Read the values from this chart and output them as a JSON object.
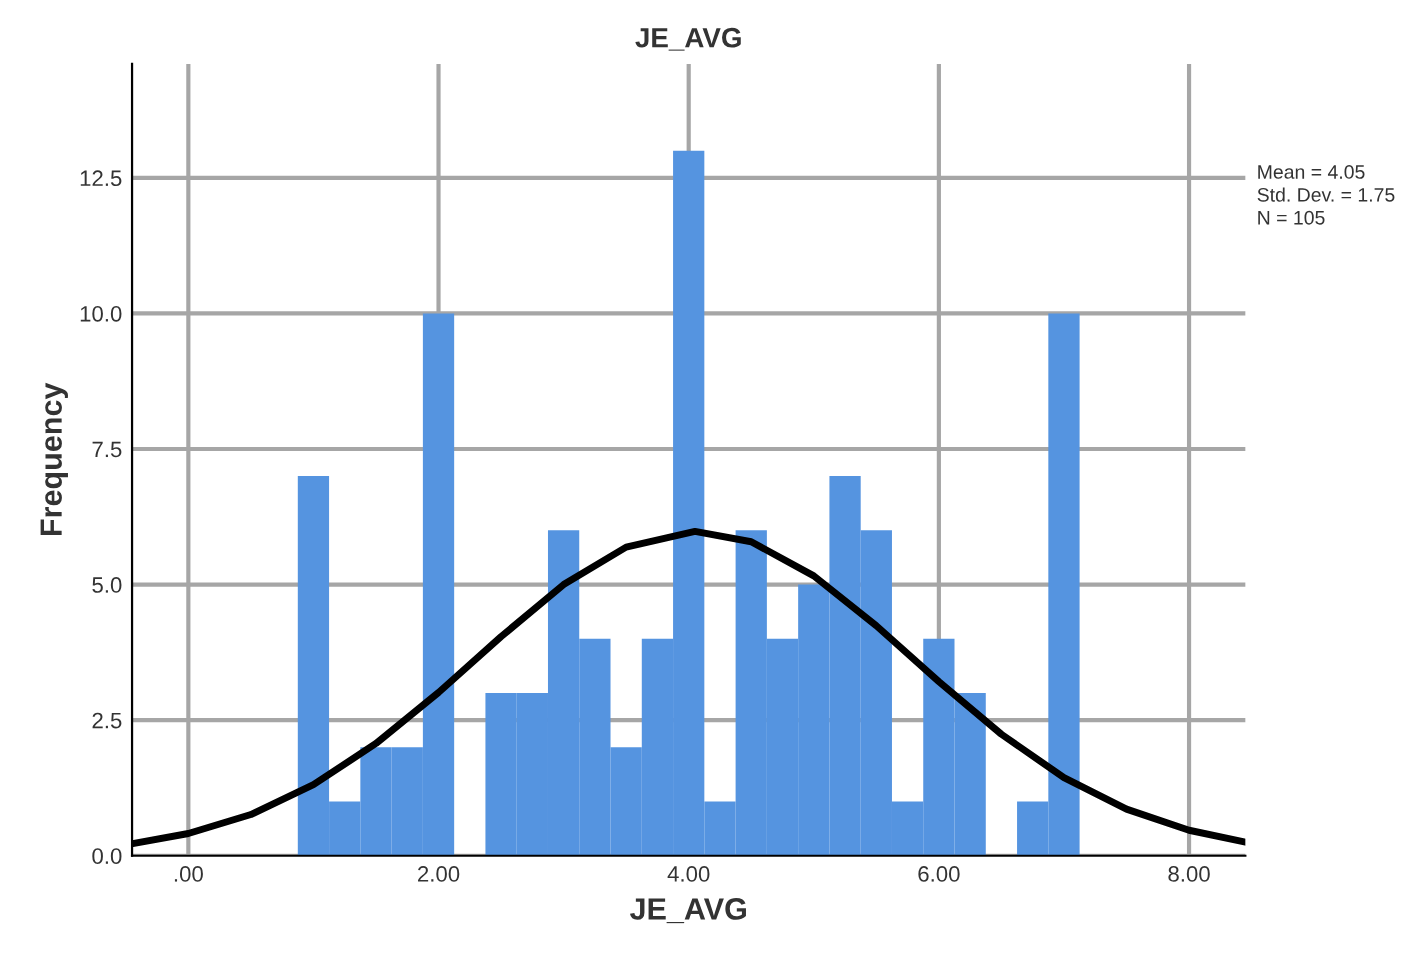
{
  "chart_data": {
    "type": "histogram",
    "title": "JE_AVG",
    "xlabel": "JE_AVG",
    "ylabel": "Frequency",
    "series": [
      {
        "color": "#5594e0",
        "bins": [
          0.875,
          1.125,
          1.375,
          1.625,
          1.875,
          2.125,
          2.375,
          2.625,
          2.875,
          3.125,
          3.375,
          3.625,
          3.875,
          4.125,
          4.375,
          4.625,
          4.875,
          5.125,
          5.375,
          5.625,
          5.875,
          6.125,
          6.375,
          6.625,
          6.875,
          7.125
        ],
        "values": [
          7,
          1,
          2,
          2,
          10,
          0,
          3,
          3,
          6,
          4,
          2,
          4,
          13,
          1,
          6,
          4,
          5,
          7,
          6,
          1,
          4,
          3,
          0,
          1,
          10
        ]
      },
      {
        "type": "line",
        "color": "#000000",
        "x": [
          -0.45,
          0,
          0.5,
          1.0,
          1.5,
          2.0,
          2.5,
          3.0,
          3.5,
          4.05,
          4.5,
          5.0,
          5.5,
          6.0,
          6.5,
          7.0,
          7.5,
          8.0,
          8.45
        ],
        "values": [
          0.22,
          0.41,
          0.76,
          1.31,
          2.07,
          3.01,
          4.04,
          5.0,
          5.69,
          5.98,
          5.79,
          5.16,
          4.24,
          3.21,
          2.24,
          1.44,
          0.86,
          0.47,
          0.25
        ]
      }
    ],
    "xlim": [
      -0.45,
      8.45
    ],
    "xticks": [
      {
        "value": 0,
        "label": ".00"
      },
      {
        "value": 2,
        "label": "2.00"
      },
      {
        "value": 4,
        "label": "4.00"
      },
      {
        "value": 6,
        "label": "6.00"
      },
      {
        "value": 8,
        "label": "8.00"
      }
    ],
    "ylim": [
      0,
      14.6
    ],
    "yticks": [
      {
        "value": 0,
        "label": "0.0"
      },
      {
        "value": 2.5,
        "label": "2.5"
      },
      {
        "value": 5,
        "label": "5.0"
      },
      {
        "value": 7.5,
        "label": "7.5"
      },
      {
        "value": 10,
        "label": "10.0"
      },
      {
        "value": 12.5,
        "label": "12.5"
      }
    ],
    "grid": true,
    "annotations": [
      "Mean = 4.05",
      "Std. Dev. = 1.75",
      "N = 105"
    ]
  }
}
